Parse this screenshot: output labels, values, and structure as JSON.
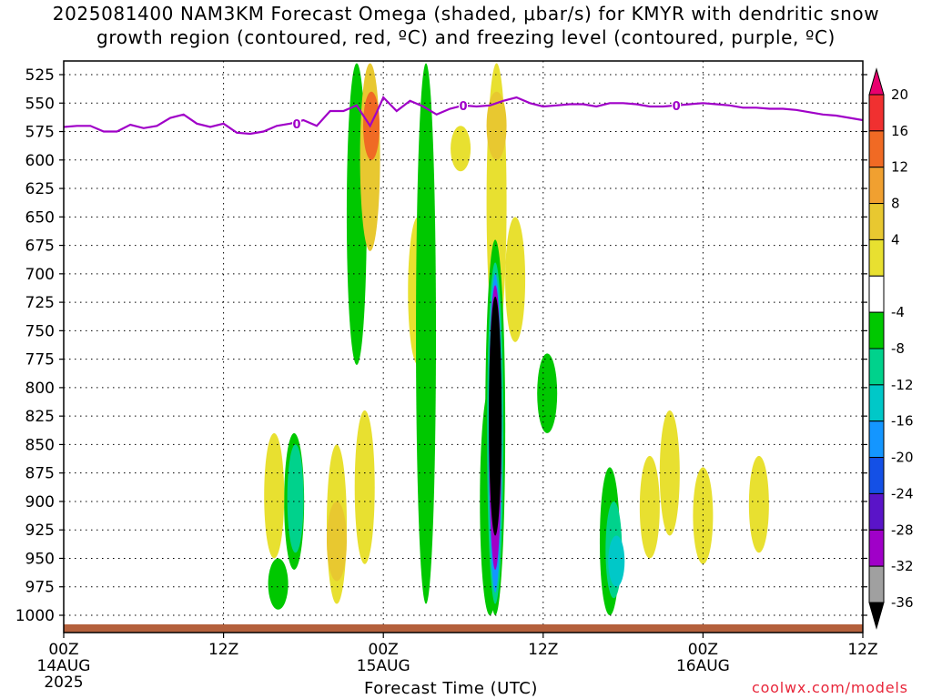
{
  "title": {
    "line1": "2025081400 NAM3KM Forecast Omega (shaded, μbar/s) for KMYR with dendritic snow",
    "line2": "growth region (contoured, red, ºC) and freezing level (contoured, purple, ºC)"
  },
  "credit": "coolwx.com/models",
  "chart_data": {
    "type": "heatmap",
    "title": "2025081400 NAM3KM Forecast Omega (shaded, μbar/s) for KMYR with dendritic snow growth region (contoured, red, ºC) and freezing level (contoured, purple, ºC)",
    "xlabel": "Forecast Time (UTC)",
    "ylabel": "",
    "x_unit": "forecast hour",
    "xlim": [
      0,
      60
    ],
    "ylim": [
      1010,
      515
    ],
    "y_ticks": [
      525,
      550,
      575,
      600,
      625,
      650,
      675,
      700,
      725,
      750,
      775,
      800,
      825,
      850,
      875,
      900,
      925,
      950,
      975,
      1000
    ],
    "x_ticks": [
      {
        "hour": 0,
        "label": "00Z",
        "sub": "14AUG",
        "sub2": "2025"
      },
      {
        "hour": 12,
        "label": "12Z",
        "sub": "",
        "sub2": ""
      },
      {
        "hour": 24,
        "label": "00Z",
        "sub": "15AUG",
        "sub2": ""
      },
      {
        "hour": 36,
        "label": "12Z",
        "sub": "",
        "sub2": ""
      },
      {
        "hour": 48,
        "label": "00Z",
        "sub": "16AUG",
        "sub2": ""
      },
      {
        "hour": 60,
        "label": "12Z",
        "sub": "",
        "sub2": ""
      }
    ],
    "grid": true,
    "colorbar": {
      "labels": [
        "20",
        "16",
        "12",
        "8",
        "4",
        "-4",
        "-8",
        "-12",
        "-16",
        "-20",
        "-24",
        "-28",
        "-32",
        "-36"
      ],
      "colors": [
        "#e8006e",
        "#f03030",
        "#f06a24",
        "#f0a030",
        "#e8c830",
        "#e8e030",
        "#ffffff",
        "#00c800",
        "#00d28c",
        "#00c8c8",
        "#1496ff",
        "#1450e6",
        "#5a14c8",
        "#a000c8",
        "#a0a0a0",
        "#000000"
      ]
    },
    "omega_features": [
      {
        "hour": 22.0,
        "p_top": 515,
        "p_bot": 780,
        "value": -8
      },
      {
        "hour": 23.0,
        "p_top": 515,
        "p_bot": 680,
        "value": 8
      },
      {
        "hour": 23.1,
        "p_top": 540,
        "p_bot": 600,
        "value": 14
      },
      {
        "hour": 26.6,
        "p_top": 650,
        "p_bot": 780,
        "value": 4
      },
      {
        "hour": 27.2,
        "p_top": 515,
        "p_bot": 990,
        "value": -8
      },
      {
        "hour": 29.8,
        "p_top": 570,
        "p_bot": 610,
        "value": 4
      },
      {
        "hour": 32.5,
        "p_top": 515,
        "p_bot": 760,
        "value": 4
      },
      {
        "hour": 32.5,
        "p_top": 540,
        "p_bot": 600,
        "value": 8
      },
      {
        "hour": 33.9,
        "p_top": 650,
        "p_bot": 760,
        "value": 4
      },
      {
        "hour": 32.0,
        "p_top": 800,
        "p_bot": 1000,
        "value": -8
      },
      {
        "hour": 32.4,
        "p_top": 670,
        "p_bot": 1000,
        "value": -8
      },
      {
        "hour": 32.4,
        "p_top": 690,
        "p_bot": 990,
        "value": -12
      },
      {
        "hour": 32.4,
        "p_top": 700,
        "p_bot": 980,
        "value": -20
      },
      {
        "hour": 32.4,
        "p_top": 710,
        "p_bot": 960,
        "value": -28
      },
      {
        "hour": 32.4,
        "p_top": 720,
        "p_bot": 930,
        "value": -36
      },
      {
        "hour": 36.3,
        "p_top": 770,
        "p_bot": 840,
        "value": -8
      },
      {
        "hour": 17.3,
        "p_top": 840,
        "p_bot": 960,
        "value": -8
      },
      {
        "hour": 17.4,
        "p_top": 850,
        "p_bot": 945,
        "value": -12
      },
      {
        "hour": 20.5,
        "p_top": 850,
        "p_bot": 990,
        "value": 4
      },
      {
        "hour": 20.5,
        "p_top": 900,
        "p_bot": 970,
        "value": 8
      },
      {
        "hour": 22.6,
        "p_top": 820,
        "p_bot": 955,
        "value": 4
      },
      {
        "hour": 15.8,
        "p_top": 840,
        "p_bot": 950,
        "value": 4
      },
      {
        "hour": 16.1,
        "p_top": 950,
        "p_bot": 995,
        "value": -8
      },
      {
        "hour": 41.0,
        "p_top": 870,
        "p_bot": 1000,
        "value": -8
      },
      {
        "hour": 41.3,
        "p_top": 900,
        "p_bot": 985,
        "value": -12
      },
      {
        "hour": 41.5,
        "p_top": 930,
        "p_bot": 975,
        "value": -16
      },
      {
        "hour": 44.0,
        "p_top": 860,
        "p_bot": 950,
        "value": 4
      },
      {
        "hour": 45.5,
        "p_top": 820,
        "p_bot": 930,
        "value": 4
      },
      {
        "hour": 48.0,
        "p_top": 870,
        "p_bot": 955,
        "value": 4
      },
      {
        "hour": 52.2,
        "p_top": 860,
        "p_bot": 945,
        "value": 4
      }
    ],
    "freezing_level": {
      "label": "0",
      "label_hours": [
        17.5,
        30.0,
        46.0
      ],
      "hours": [
        0,
        1,
        2,
        3,
        4,
        5,
        6,
        7,
        8,
        9,
        10,
        11,
        12,
        13,
        14,
        15,
        16,
        17,
        18,
        19,
        20,
        21,
        22,
        23,
        23.5,
        24,
        25,
        26,
        27,
        28,
        29,
        30,
        31,
        32,
        33,
        34,
        35,
        36,
        37,
        38,
        39,
        40,
        41,
        42,
        43,
        44,
        45,
        46,
        47,
        48,
        49,
        50,
        51,
        52,
        53,
        54,
        55,
        56,
        57,
        58,
        59,
        60
      ],
      "pressure": [
        571,
        570,
        570,
        575,
        575,
        569,
        572,
        570,
        563,
        560,
        568,
        571,
        568,
        576,
        577,
        575,
        570,
        568,
        565,
        570,
        557,
        557,
        552,
        570,
        558,
        545,
        557,
        548,
        553,
        560,
        555,
        552,
        553,
        552,
        548,
        545,
        550,
        553,
        552,
        551,
        551,
        553,
        550,
        550,
        551,
        553,
        553,
        552,
        551,
        550,
        551,
        552,
        554,
        554,
        555,
        555,
        556,
        558,
        560,
        561,
        563,
        565
      ]
    },
    "terrain_color": "#b4603c",
    "freezing_color": "#a000c8"
  }
}
